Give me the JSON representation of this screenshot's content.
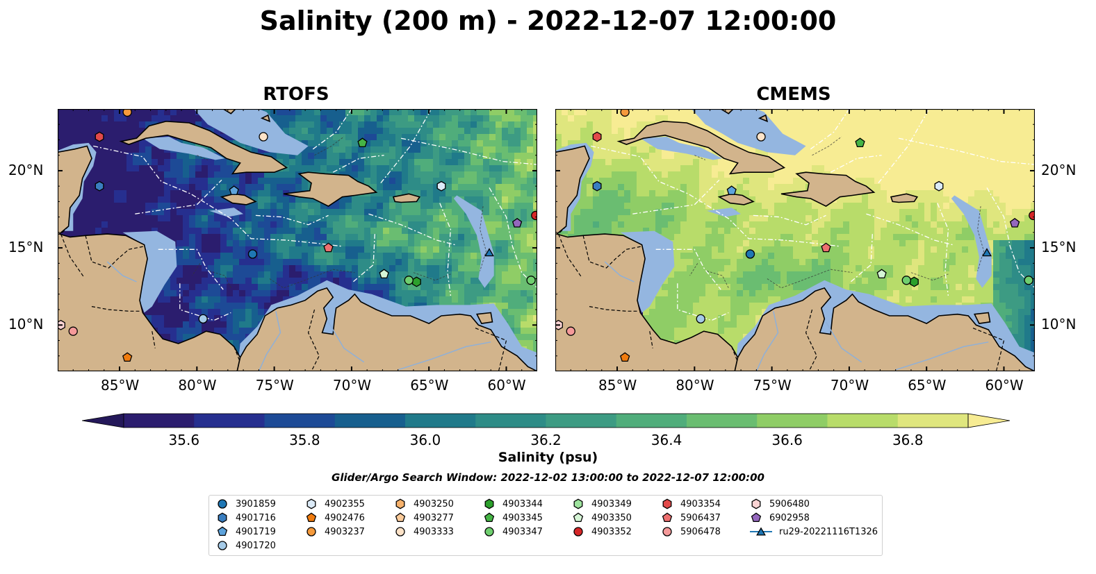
{
  "title": "Salinity (200 m) - 2022-12-07 12:00:00",
  "panels": [
    {
      "title": "RTOFS",
      "style": "rtofs"
    },
    {
      "title": "CMEMS",
      "style": "cmems"
    }
  ],
  "map_extent": {
    "lon": [
      -89,
      -58
    ],
    "lat": [
      7,
      24
    ]
  },
  "lon_ticks": [
    {
      "lon": -85,
      "label": "85°W"
    },
    {
      "lon": -80,
      "label": "80°W"
    },
    {
      "lon": -75,
      "label": "75°W"
    },
    {
      "lon": -70,
      "label": "70°W"
    },
    {
      "lon": -65,
      "label": "65°W"
    },
    {
      "lon": -60,
      "label": "60°W"
    }
  ],
  "lat_ticks": [
    {
      "lat": 20,
      "label": "20°N"
    },
    {
      "lat": 15,
      "label": "15°N"
    },
    {
      "lat": 10,
      "label": "10°N"
    }
  ],
  "colorbar": {
    "label": "Salinity (psu)",
    "range": [
      35.5,
      36.9
    ],
    "extend": "both",
    "colors": [
      "#2b1d6e",
      "#262f8f",
      "#1d4a96",
      "#175f8e",
      "#207a8a",
      "#2e8c87",
      "#3d9b83",
      "#50ad7b",
      "#6abd71",
      "#8fcd66",
      "#b8dc6a",
      "#dfe67e"
    ],
    "ticks": [
      "35.6",
      "35.8",
      "36.0",
      "36.2",
      "36.4",
      "36.6",
      "36.8"
    ],
    "tick_values": [
      35.6,
      35.8,
      36.0,
      36.2,
      36.4,
      36.6,
      36.8
    ]
  },
  "search_window": "Glider/Argo Search Window: 2022-12-02 13:00:00 to 2022-12-07 12:00:00",
  "legend": [
    {
      "label": "3901859",
      "marker": "circle",
      "color": "#1f77b4"
    },
    {
      "label": "4901716",
      "marker": "hexagon",
      "color": "#3a7ec0"
    },
    {
      "label": "4901719",
      "marker": "pentagon",
      "color": "#5da3dc"
    },
    {
      "label": "4901720",
      "marker": "circle",
      "color": "#a5cbe8"
    },
    {
      "label": "4902355",
      "marker": "hexagon",
      "color": "#dcebf8"
    },
    {
      "label": "4902476",
      "marker": "pentagon",
      "color": "#f07b0e"
    },
    {
      "label": "4903237",
      "marker": "circle",
      "color": "#f59a3c"
    },
    {
      "label": "4903250",
      "marker": "hexagon",
      "color": "#f7b26c"
    },
    {
      "label": "4903277",
      "marker": "pentagon",
      "color": "#fbcb9a"
    },
    {
      "label": "4903333",
      "marker": "circle",
      "color": "#fde3c8"
    },
    {
      "label": "4903344",
      "marker": "hexagon",
      "color": "#2ca02c"
    },
    {
      "label": "4903345",
      "marker": "pentagon",
      "color": "#45b445"
    },
    {
      "label": "4903347",
      "marker": "circle",
      "color": "#6fcf6f"
    },
    {
      "label": "4903349",
      "marker": "hexagon",
      "color": "#9ee39e"
    },
    {
      "label": "4903350",
      "marker": "pentagon",
      "color": "#d6f5d6"
    },
    {
      "label": "4903352",
      "marker": "circle",
      "color": "#d62728"
    },
    {
      "label": "4903354",
      "marker": "hexagon",
      "color": "#e24a4a"
    },
    {
      "label": "5906437",
      "marker": "pentagon",
      "color": "#ee7070"
    },
    {
      "label": "5906478",
      "marker": "circle",
      "color": "#f59a9a"
    },
    {
      "label": "5906480",
      "marker": "hexagon",
      "color": "#fbd3d3"
    },
    {
      "label": "6902958",
      "marker": "pentagon",
      "color": "#9467bd"
    },
    {
      "label": "ru29-20221116T1326",
      "marker": "triangle-line",
      "color": "#1f77b4"
    }
  ],
  "floats": [
    {
      "id": "4903237",
      "lon": -84.5,
      "lat": 23.8
    },
    {
      "id": "4903354",
      "lon": -86.3,
      "lat": 22.2
    },
    {
      "id": "4901716",
      "lon": -86.3,
      "lat": 19.0
    },
    {
      "id": "4903333",
      "lon": -75.7,
      "lat": 22.2
    },
    {
      "id": "4903345",
      "lon": -69.3,
      "lat": 21.8
    },
    {
      "id": "4901719",
      "lon": -77.6,
      "lat": 18.7
    },
    {
      "id": "4902355",
      "lon": -64.2,
      "lat": 19.0
    },
    {
      "id": "6902958",
      "lon": -59.3,
      "lat": 16.6
    },
    {
      "id": "4903352",
      "lon": -58.1,
      "lat": 17.1
    },
    {
      "id": "3901859",
      "lon": -76.4,
      "lat": 14.6
    },
    {
      "id": "5906437",
      "lon": -71.5,
      "lat": 15.0
    },
    {
      "id": "4903350",
      "lon": -67.9,
      "lat": 13.3
    },
    {
      "id": "4903344",
      "lon": -65.8,
      "lat": 12.8
    },
    {
      "id": "4903347",
      "lon": -66.3,
      "lat": 12.9
    },
    {
      "id": "4903347",
      "lon": -58.4,
      "lat": 12.9
    },
    {
      "id": "4901720",
      "lon": -79.6,
      "lat": 10.4
    },
    {
      "id": "5906480",
      "lon": -88.8,
      "lat": 10.0
    },
    {
      "id": "5906478",
      "lon": -88.0,
      "lat": 9.6
    },
    {
      "id": "4902476",
      "lon": -84.5,
      "lat": 7.9
    },
    {
      "id": "ru29-20221116T1326",
      "lon": -61.1,
      "lat": 14.7
    }
  ]
}
